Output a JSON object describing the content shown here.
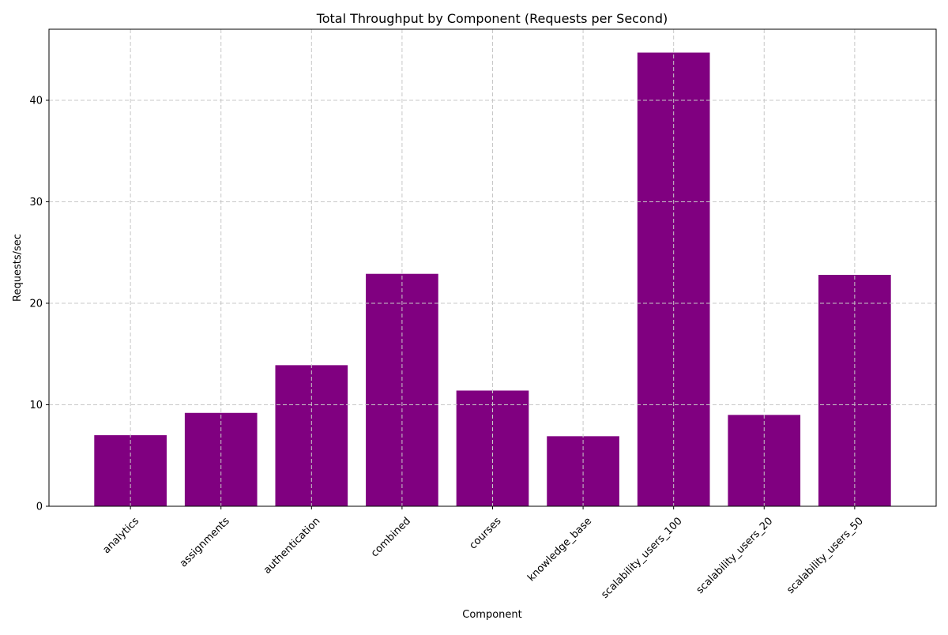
{
  "chart_data": {
    "type": "bar",
    "title": "Total Throughput by Component (Requests per Second)",
    "xlabel": "Component",
    "ylabel": "Requests/sec",
    "categories": [
      "analytics",
      "assignments",
      "authentication",
      "combined",
      "courses",
      "knowledge_base",
      "scalability_users_100",
      "scalability_users_20",
      "scalability_users_50"
    ],
    "values": [
      7.0,
      9.2,
      13.9,
      22.9,
      11.4,
      6.9,
      44.7,
      9.0,
      22.8
    ],
    "ylim": [
      0,
      47
    ],
    "yticks": [
      0,
      10,
      20,
      30,
      40
    ],
    "grid": true,
    "bar_color": "#800080",
    "grid_color": "#c8c8c8"
  }
}
